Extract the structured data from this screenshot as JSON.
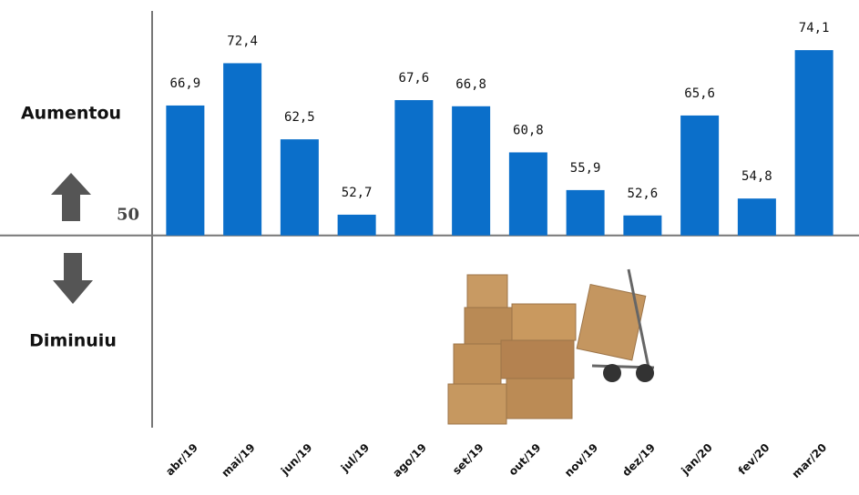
{
  "chart_data": {
    "type": "bar",
    "categories": [
      "abr/19",
      "mai/19",
      "jun/19",
      "jul/19",
      "ago/19",
      "set/19",
      "out/19",
      "nov/19",
      "dez/19",
      "jan/20",
      "fev/20",
      "mar/20"
    ],
    "values": [
      66.9,
      72.4,
      62.5,
      52.7,
      67.6,
      66.8,
      60.8,
      55.9,
      52.6,
      65.6,
      54.8,
      74.1
    ],
    "value_labels": [
      "66,9",
      "72,4",
      "62,5",
      "52,7",
      "67,6",
      "66,8",
      "60,8",
      "55,9",
      "52,6",
      "65,6",
      "54,8",
      "74,1"
    ],
    "color": "#0b6fca",
    "ylim": [
      25,
      79.2
    ],
    "yticks": [
      50
    ],
    "annotations": [
      "Aumentou",
      "Diminuiu"
    ]
  }
}
